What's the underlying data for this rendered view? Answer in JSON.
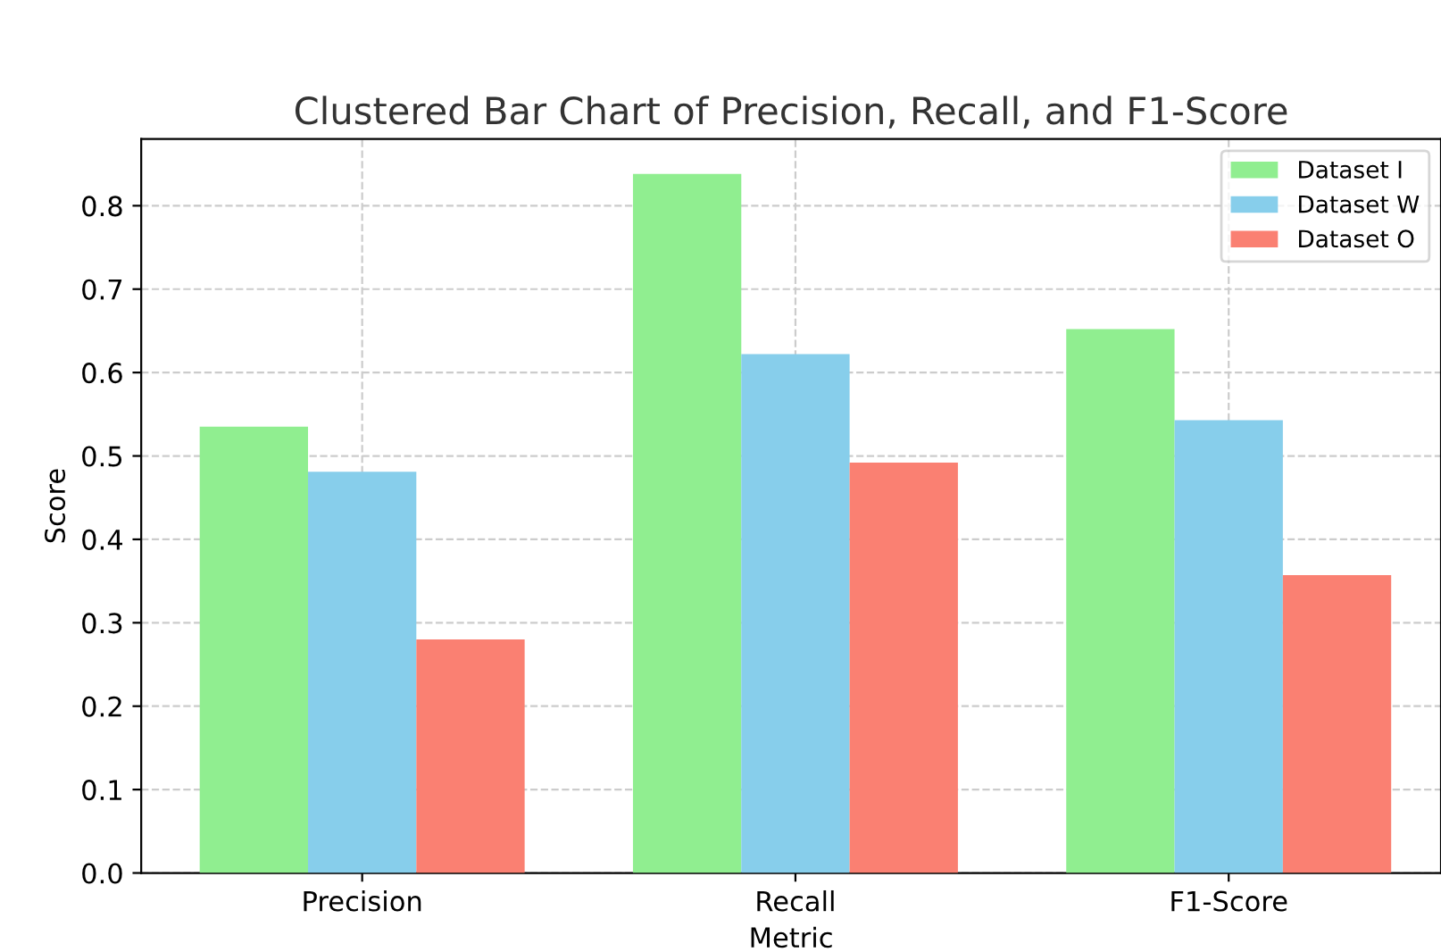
{
  "chart_data": {
    "type": "bar",
    "title": "Clustered Bar Chart of Precision, Recall, and F1-Score",
    "xlabel": "Metric",
    "ylabel": "Score",
    "categories": [
      "Precision",
      "Recall",
      "F1-Score"
    ],
    "series": [
      {
        "name": "Dataset I",
        "color": "#90ee90",
        "values": [
          0.535,
          0.838,
          0.652
        ]
      },
      {
        "name": "Dataset W",
        "color": "#87ceeb",
        "values": [
          0.481,
          0.622,
          0.543
        ]
      },
      {
        "name": "Dataset O",
        "color": "#fa8072",
        "values": [
          0.28,
          0.492,
          0.357
        ]
      }
    ],
    "ylim": [
      0,
      0.88
    ],
    "yticks": [
      {
        "value": 0,
        "label": "0.0"
      },
      0.1,
      0.2,
      0.3,
      0.4,
      0.5,
      0.6,
      0.7,
      0.8
    ],
    "grid": true,
    "legend": "top right"
  }
}
